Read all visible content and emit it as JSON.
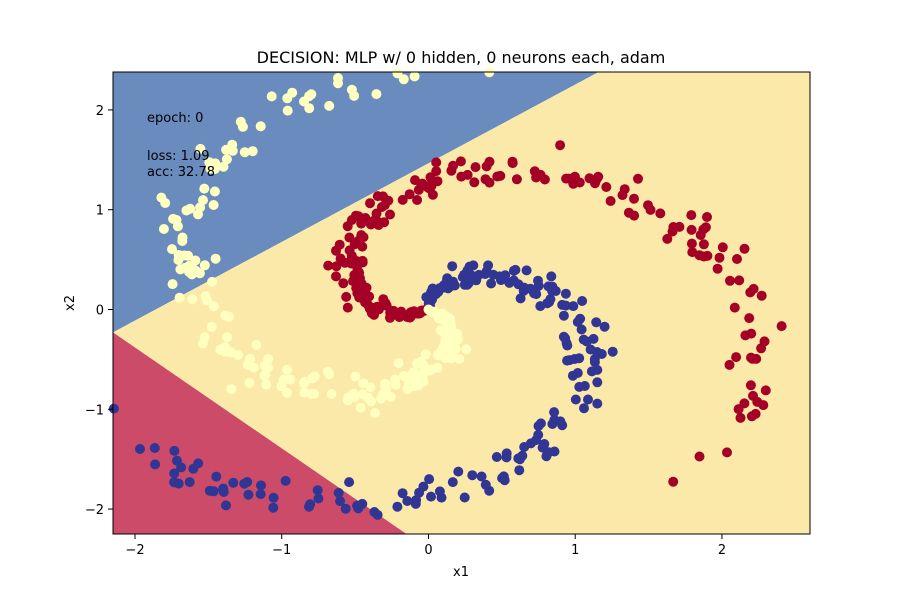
{
  "chart_data": {
    "type": "scatter",
    "title": "DECISION: MLP w/ 0 hidden, 0 neurons each, adam",
    "xlabel": "x1",
    "ylabel": "x2",
    "xlim": [
      -2.15,
      2.6
    ],
    "ylim": [
      -2.25,
      2.38
    ],
    "xticks": [
      -2,
      -1,
      0,
      1,
      2
    ],
    "yticks": [
      -2,
      -1,
      0,
      1,
      2
    ],
    "xtick_labels": [
      "−2",
      "−1",
      "0",
      "1",
      "2"
    ],
    "ytick_labels": [
      "−2",
      "−1",
      "0",
      "1",
      "2"
    ],
    "grid": false,
    "annotations": {
      "epoch": "epoch: 0",
      "loss": "loss:  1.09",
      "acc": "acc:  32.78"
    },
    "regions": [
      {
        "color": "#6a8bbd",
        "polygon": [
          [
            -2.15,
            2.38
          ],
          [
            1.16,
            2.38
          ],
          [
            -2.15,
            -0.23
          ]
        ]
      },
      {
        "color": "#fbe9a9",
        "polygon": [
          [
            1.16,
            2.38
          ],
          [
            2.6,
            2.38
          ],
          [
            2.6,
            -2.25
          ],
          [
            -0.15,
            -2.25
          ],
          [
            -2.15,
            -0.23
          ]
        ]
      },
      {
        "color": "#cc4b68",
        "polygon": [
          [
            -2.15,
            -0.23
          ],
          [
            -0.15,
            -2.25
          ],
          [
            -2.15,
            -2.25
          ]
        ]
      }
    ],
    "series_colors": [
      "#313695",
      "#a50026",
      "#ffffbf"
    ],
    "spiral_params": [
      {
        "class": 0,
        "rotation": 0.0,
        "color": "#313695"
      },
      {
        "class": 1,
        "rotation": 4.18879,
        "color": "#a50026"
      },
      {
        "class": 2,
        "rotation": 2.0944,
        "color": "#ffffbf"
      }
    ]
  }
}
